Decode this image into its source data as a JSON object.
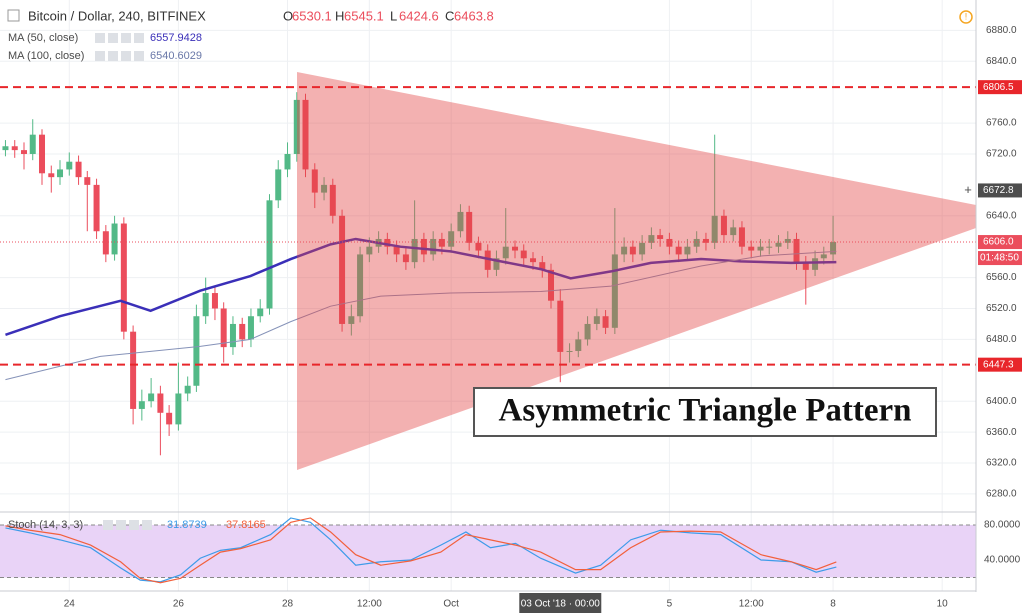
{
  "chart_data": [
    {
      "type": "candlestick",
      "title": "Bitcoin / Dollar, 240, BITFINEX",
      "ohlc_labels": [
        "O",
        "H",
        "L",
        "C"
      ],
      "up_color": "#53b987",
      "down_color": "#eb4d5c",
      "x": [
        22.83,
        23,
        23.17,
        23.33,
        23.5,
        23.67,
        23.83,
        24,
        24.17,
        24.33,
        24.5,
        24.67,
        24.83,
        25,
        25.17,
        25.33,
        25.5,
        25.67,
        25.83,
        26,
        26.17,
        26.33,
        26.5,
        26.67,
        26.83,
        27,
        27.17,
        27.33,
        27.5,
        27.67,
        27.83,
        28,
        28.17,
        28.33,
        28.5,
        28.67,
        28.83,
        29,
        29.17,
        29.33,
        29.5,
        29.67,
        29.83,
        30,
        30.17,
        30.33,
        30.5,
        30.67,
        30.83,
        31,
        31.17,
        31.33,
        31.5,
        31.67,
        31.83,
        32,
        32.17,
        32.33,
        32.5,
        32.67,
        32.83,
        33,
        33.17,
        33.33,
        33.5,
        33.67,
        33.83,
        34,
        34.17,
        34.33,
        34.5,
        34.67,
        34.83,
        35,
        35.17,
        35.33,
        35.5,
        35.67,
        35.83,
        36,
        36.17,
        36.33,
        36.5,
        36.67,
        36.83,
        37,
        37.17,
        37.33,
        37.5,
        37.67,
        37.83,
        38
      ],
      "open": [
        6725,
        6730,
        6725,
        6720,
        6745,
        6695,
        6690,
        6700,
        6710,
        6690,
        6680,
        6620,
        6590,
        6630,
        6490,
        6390,
        6400,
        6410,
        6385,
        6370,
        6410,
        6420,
        6510,
        6540,
        6520,
        6470,
        6500,
        6480,
        6510,
        6520,
        6660,
        6700,
        6720,
        6790,
        6700,
        6670,
        6680,
        6640,
        6500,
        6510,
        6590,
        6600,
        6610,
        6600,
        6590,
        6580,
        6610,
        6590,
        6610,
        6600,
        6620,
        6645,
        6605,
        6595,
        6570,
        6585,
        6600,
        6595,
        6585,
        6580,
        6570,
        6530.1,
        6463.8,
        6465,
        6480,
        6500,
        6510,
        6495,
        6590,
        6600,
        6590,
        6605,
        6615,
        6610,
        6600,
        6590,
        6600,
        6610,
        6605,
        6640,
        6615,
        6625,
        6600,
        6595,
        6600,
        6600,
        6605,
        6610,
        6580,
        6570,
        6585,
        6590
      ],
      "high": [
        6738,
        6738,
        6735,
        6765,
        6752,
        6705,
        6712,
        6722,
        6718,
        6698,
        6688,
        6628,
        6640,
        6638,
        6498,
        6415,
        6430,
        6420,
        6395,
        6450,
        6432,
        6525,
        6560,
        6548,
        6528,
        6510,
        6508,
        6520,
        6532,
        6668,
        6712,
        6735,
        6800,
        6798,
        6708,
        6690,
        6688,
        6648,
        6525,
        6600,
        6612,
        6620,
        6618,
        6608,
        6598,
        6660,
        6618,
        6620,
        6618,
        6630,
        6655,
        6653,
        6613,
        6603,
        6595,
        6650,
        6608,
        6603,
        6593,
        6588,
        6578,
        6545.1,
        6475,
        6490,
        6510,
        6520,
        6518,
        6650,
        6612,
        6608,
        6615,
        6625,
        6623,
        6618,
        6608,
        6610,
        6620,
        6618,
        6745,
        6648,
        6635,
        6633,
        6608,
        6610,
        6610,
        6615,
        6620,
        6618,
        6588,
        6595,
        6600,
        6640
      ],
      "low": [
        6717,
        6715,
        6700,
        6712,
        6680,
        6670,
        6680,
        6692,
        6680,
        6620,
        6610,
        6580,
        6582,
        6480,
        6370,
        6375,
        6392,
        6330,
        6355,
        6362,
        6400,
        6412,
        6500,
        6505,
        6450,
        6460,
        6470,
        6470,
        6502,
        6512,
        6650,
        6690,
        6710,
        6690,
        6650,
        6660,
        6630,
        6490,
        6485,
        6502,
        6580,
        6592,
        6590,
        6580,
        6570,
        6572,
        6580,
        6582,
        6590,
        6592,
        6612,
        6595,
        6585,
        6560,
        6562,
        6577,
        6585,
        6575,
        6570,
        6560,
        6520,
        6424.6,
        6450,
        6457,
        6472,
        6492,
        6487,
        6487,
        6580,
        6580,
        6582,
        6597,
        6600,
        6590,
        6580,
        6582,
        6592,
        6595,
        6597,
        6605,
        6607,
        6590,
        6585,
        6587,
        6590,
        6592,
        6597,
        6570,
        6525,
        6562,
        6577,
        6582
      ],
      "close": [
        6730,
        6725,
        6720,
        6745,
        6695,
        6690,
        6700,
        6710,
        6690,
        6680,
        6620,
        6590,
        6630,
        6490,
        6390,
        6400,
        6410,
        6385,
        6370,
        6410,
        6420,
        6510,
        6540,
        6520,
        6470,
        6500,
        6480,
        6510,
        6520,
        6660,
        6700,
        6720,
        6790,
        6700,
        6670,
        6680,
        6640,
        6500,
        6510,
        6590,
        6600,
        6610,
        6600,
        6590,
        6580,
        6610,
        6590,
        6610,
        6600,
        6620,
        6645,
        6605,
        6595,
        6570,
        6585,
        6600,
        6595,
        6585,
        6580,
        6570,
        6530.1,
        6463.8,
        6465,
        6480,
        6500,
        6510,
        6495,
        6590,
        6600,
        6590,
        6605,
        6615,
        6610,
        6600,
        6590,
        6600,
        6610,
        6605,
        6640,
        6615,
        6625,
        6600,
        6595,
        6600,
        6600,
        6605,
        6610,
        6580,
        6570,
        6585,
        6590,
        6606
      ],
      "series": [
        {
          "name": "MA (50, close)",
          "color": "#3a2fb8",
          "legend_value": 6557.9428,
          "x": [
            22.83,
            23.83,
            24.94,
            25.49,
            26.4,
            27.32,
            28.06,
            28.79,
            29.25,
            30.07,
            30.99,
            31.91,
            32.64,
            33.19,
            33.93,
            34.66,
            35.58,
            36.31,
            37.23,
            38.06
          ],
          "values": [
            6486,
            6510,
            6530,
            6517,
            6543,
            6562,
            6584,
            6603,
            6610,
            6600,
            6594,
            6581,
            6571,
            6559,
            6568,
            6579,
            6584,
            6581,
            6579,
            6580
          ]
        },
        {
          "name": "MA (100, close)",
          "color": "#8592b8",
          "legend_value": 6540.6029,
          "x": [
            22.83,
            24.57,
            26.4,
            27.32,
            28.06,
            28.79,
            29.71,
            30.99,
            32.64,
            33.93,
            35.58,
            36.68,
            38.06
          ],
          "values": [
            6428,
            6458,
            6471,
            6480,
            6503,
            6523,
            6536,
            6540,
            6542,
            6549,
            6575,
            6588,
            6594
          ]
        }
      ],
      "hlines": [
        {
          "value": 6806.5,
          "color": "#e8262b"
        },
        {
          "value": 6447.3,
          "color": "#e8262b"
        }
      ],
      "last_price": {
        "value": 6606,
        "label": "6606.0"
      },
      "countdown": "01:48:50",
      "crosshair_y": 6672.8,
      "crosshair_x": {
        "value": 33,
        "label": "03 Oct '18 · 00:00"
      },
      "annotation": "Asymmetric Triangle Pattern",
      "xlim": [
        22.73,
        40.62
      ],
      "xticks": [
        24,
        26,
        28,
        {
          "value": 29.5,
          "label": "12:00"
        },
        {
          "value": 31,
          "label": "Oct"
        },
        {
          "value": 35,
          "label": "5"
        },
        {
          "value": 36.5,
          "label": "12:00"
        },
        {
          "value": 38,
          "label": "8"
        },
        {
          "value": 40,
          "label": "10"
        }
      ],
      "ylim": [
        6256.6,
        6919.3
      ],
      "yticks": [
        {
          "value": 6280,
          "label": "6280.0"
        },
        {
          "value": 6320,
          "label": "6320.0"
        },
        {
          "value": 6360,
          "label": "6360.0"
        },
        {
          "value": 6400,
          "label": "6400.0"
        },
        {
          "value": 6480,
          "label": "6480.0"
        },
        {
          "value": 6520,
          "label": "6520.0"
        },
        {
          "value": 6560,
          "label": "6560.0"
        },
        {
          "value": 6640,
          "label": "6640.0"
        },
        {
          "value": 6720,
          "label": "6720.0"
        },
        {
          "value": 6760,
          "label": "6760.0"
        },
        {
          "value": 6840,
          "label": "6840.0"
        },
        {
          "value": 6880,
          "label": "6880.0"
        }
      ],
      "grid": true
    },
    {
      "type": "line",
      "title": "Stoch (14, 3, 3)",
      "x": [
        22.83,
        23.28,
        23.83,
        24.39,
        24.94,
        25.3,
        25.67,
        26.04,
        26.4,
        26.77,
        27.14,
        27.69,
        28.06,
        28.42,
        28.79,
        29.25,
        29.71,
        30.26,
        30.81,
        31.27,
        31.72,
        32.18,
        32.64,
        33.28,
        33.74,
        34.29,
        34.84,
        35.39,
        35.94,
        36.68,
        37.23,
        37.69,
        38.06
      ],
      "series": [
        {
          "color": "#3d9be9",
          "values": [
            76.6,
            71,
            63,
            54,
            31,
            17,
            15,
            23,
            42,
            51,
            54,
            69,
            88,
            83,
            63,
            34,
            38,
            40,
            57,
            72,
            54,
            59,
            42,
            25,
            34,
            63,
            74,
            71,
            69,
            40,
            38,
            26,
            31.8739
          ]
        },
        {
          "color": "#f2603c",
          "values": [
            79,
            74,
            69,
            57,
            38,
            19,
            14,
            19,
            34,
            49,
            53,
            63,
            83,
            88,
            72,
            46,
            34,
            39,
            49,
            69,
            63,
            57,
            49,
            29,
            29,
            54,
            72,
            73,
            72,
            46,
            38,
            29,
            37.8165
          ]
        }
      ],
      "band": [
        20,
        80
      ],
      "band_color": "#e9d3f7",
      "ylim": [
        5.7,
        91.4
      ],
      "yticks": [
        {
          "value": 40,
          "label": "40.0000"
        },
        {
          "value": 80,
          "label": "80.0000"
        }
      ]
    }
  ]
}
